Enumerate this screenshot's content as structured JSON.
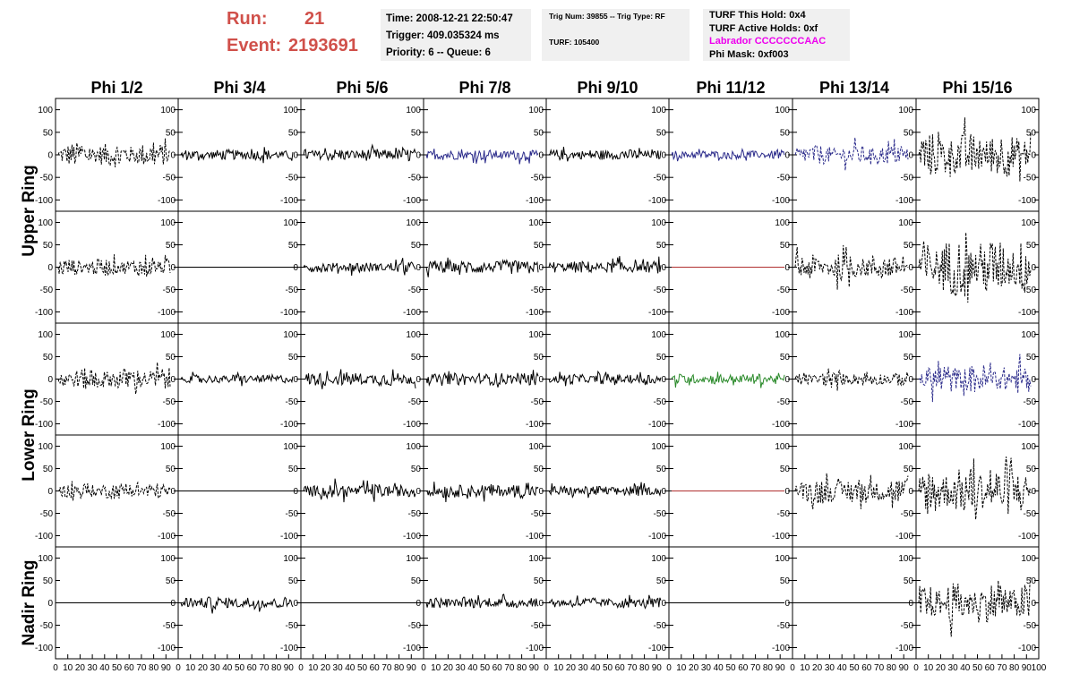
{
  "header": {
    "run_label": "Run:",
    "run_value": "21",
    "event_label": "Event:",
    "event_value": "2193691",
    "time": "Time: 2008-12-21 22:50:47",
    "trigger": "Trigger: 409.035324 ms",
    "priority": "Priority: 6 -- Queue: 6",
    "trig_num": "Trig Num: 39855 -- Trig Type: RF",
    "turf": "TURF: 105400",
    "turf_this_hold": "TURF This Hold: 0x4",
    "turf_active_holds": "TURF Active Holds: 0xf",
    "labrador": "Labrador CCCCCCCAAC",
    "phi_mask": "Phi Mask: 0xf003"
  },
  "colors": {
    "header_red": "#d0504a",
    "labrador_magenta": "#ee00ee",
    "trace_black": "#000000",
    "trace_blue": "#2a2a8a",
    "trace_green": "#2a8a2a",
    "trace_red": "#b03030"
  },
  "chart_data": {
    "type": "line",
    "columns": [
      "Phi 1/2",
      "Phi 3/4",
      "Phi 5/6",
      "Phi 7/8",
      "Phi 9/10",
      "Phi 11/12",
      "Phi 13/14",
      "Phi 15/16"
    ],
    "row_labels": [
      "Upper Ring",
      "Lower Ring",
      "Nadir Ring"
    ],
    "rows_per_group": [
      2,
      2,
      1
    ],
    "ylim": [
      -125,
      125
    ],
    "yticks": [
      -100,
      -50,
      0,
      50,
      100
    ],
    "xlim": [
      0,
      100
    ],
    "xticks": [
      0,
      10,
      20,
      30,
      40,
      50,
      60,
      70,
      80,
      90,
      100
    ],
    "panels": [
      [
        {
          "amp": 28,
          "style": "dashed",
          "color": "black"
        },
        {
          "amp": 12,
          "style": "solid",
          "color": "black"
        },
        {
          "amp": 14,
          "style": "solid",
          "color": "black"
        },
        {
          "amp": 12,
          "style": "solid",
          "color": "blue"
        },
        {
          "amp": 12,
          "style": "solid",
          "color": "black"
        },
        {
          "amp": 10,
          "style": "solid",
          "color": "blue"
        },
        {
          "amp": 22,
          "style": "dashed",
          "color": "blue"
        },
        {
          "amp": 50,
          "style": "dashed",
          "color": "black"
        }
      ],
      [
        {
          "amp": 20,
          "style": "dashed",
          "color": "black"
        },
        {
          "amp": 0,
          "style": "solid",
          "color": "black"
        },
        {
          "amp": 12,
          "style": "solid",
          "color": "black"
        },
        {
          "amp": 16,
          "style": "solid",
          "color": "black"
        },
        {
          "amp": 14,
          "style": "solid",
          "color": "black"
        },
        {
          "amp": 0,
          "style": "solid",
          "color": "red"
        },
        {
          "amp": 30,
          "style": "dashed",
          "color": "black"
        },
        {
          "amp": 65,
          "style": "dashed",
          "color": "black"
        }
      ],
      [
        {
          "amp": 26,
          "style": "dashed",
          "color": "black"
        },
        {
          "amp": 10,
          "style": "solid",
          "color": "black"
        },
        {
          "amp": 16,
          "style": "solid",
          "color": "black"
        },
        {
          "amp": 14,
          "style": "solid",
          "color": "black"
        },
        {
          "amp": 12,
          "style": "solid",
          "color": "black"
        },
        {
          "amp": 12,
          "style": "solid",
          "color": "green"
        },
        {
          "amp": 16,
          "style": "dashed",
          "color": "black"
        },
        {
          "amp": 34,
          "style": "dashed",
          "color": "blue"
        }
      ],
      [
        {
          "amp": 18,
          "style": "dashed",
          "color": "black"
        },
        {
          "amp": 0,
          "style": "solid",
          "color": "black"
        },
        {
          "amp": 16,
          "style": "solid",
          "color": "black"
        },
        {
          "amp": 16,
          "style": "solid",
          "color": "black"
        },
        {
          "amp": 12,
          "style": "solid",
          "color": "black"
        },
        {
          "amp": 0,
          "style": "solid",
          "color": "red"
        },
        {
          "amp": 30,
          "style": "dashed",
          "color": "black"
        },
        {
          "amp": 55,
          "style": "dashed",
          "color": "black"
        }
      ],
      [
        {
          "amp": 0,
          "style": "solid",
          "color": "black"
        },
        {
          "amp": 14,
          "style": "solid",
          "color": "black"
        },
        {
          "amp": 0,
          "style": "solid",
          "color": "black"
        },
        {
          "amp": 12,
          "style": "solid",
          "color": "black"
        },
        {
          "amp": 12,
          "style": "solid",
          "color": "black"
        },
        {
          "amp": 0,
          "style": "solid",
          "color": "black"
        },
        {
          "amp": 0,
          "style": "solid",
          "color": "black"
        },
        {
          "amp": 45,
          "style": "dashed",
          "color": "black"
        }
      ]
    ]
  }
}
